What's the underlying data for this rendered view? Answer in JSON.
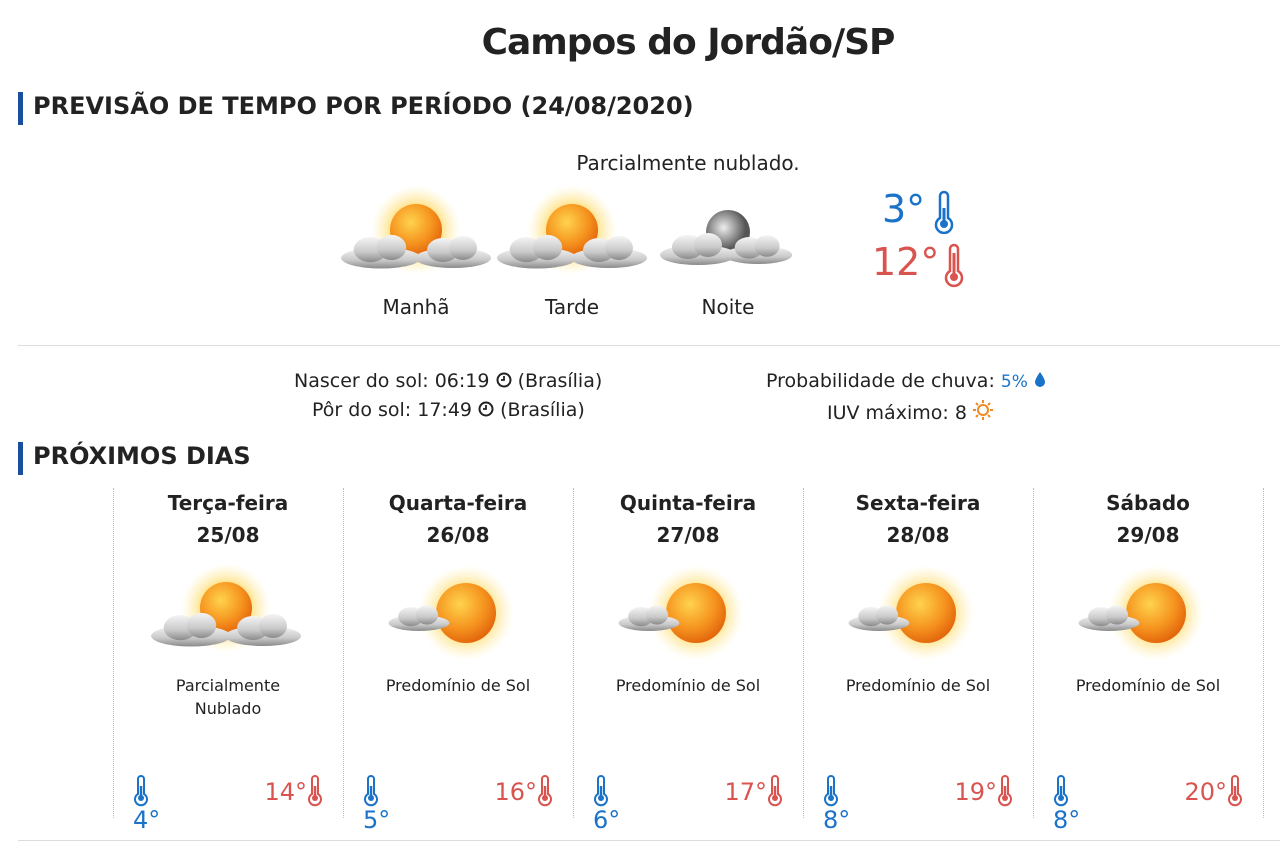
{
  "header": {
    "title": "Campos do Jordão/SP"
  },
  "today": {
    "section_title": "PREVISÃO DE TEMPO POR PERÍODO (24/08/2020)",
    "summary": "Parcialmente nublado.",
    "periods": [
      "Manhã",
      "Tarde",
      "Noite"
    ],
    "min_temp": "3°",
    "max_temp": "12°",
    "sunrise": {
      "label": "Nascer do sol:",
      "time": "06:19",
      "zone": "(Brasília)"
    },
    "sunset": {
      "label": "Pôr do sol:",
      "time": "17:49",
      "zone": "(Brasília)"
    },
    "rain": {
      "label": "Probabilidade de chuva:",
      "value": "5%"
    },
    "uv": {
      "label": "IUV máximo:",
      "value": "8"
    }
  },
  "next_days": {
    "section_title": "PRÓXIMOS DIAS",
    "days": [
      {
        "name": "Terça-feira",
        "date": "25/08",
        "condition": "Parcialmente Nublado",
        "min": "4°",
        "max": "14°"
      },
      {
        "name": "Quarta-feira",
        "date": "26/08",
        "condition": "Predomínio de Sol",
        "min": "5°",
        "max": "16°"
      },
      {
        "name": "Quinta-feira",
        "date": "27/08",
        "condition": "Predomínio de Sol",
        "min": "6°",
        "max": "17°"
      },
      {
        "name": "Sexta-feira",
        "date": "28/08",
        "condition": "Predomínio de Sol",
        "min": "8°",
        "max": "19°"
      },
      {
        "name": "Sábado",
        "date": "29/08",
        "condition": "Predomínio de Sol",
        "min": "8°",
        "max": "20°"
      }
    ]
  }
}
